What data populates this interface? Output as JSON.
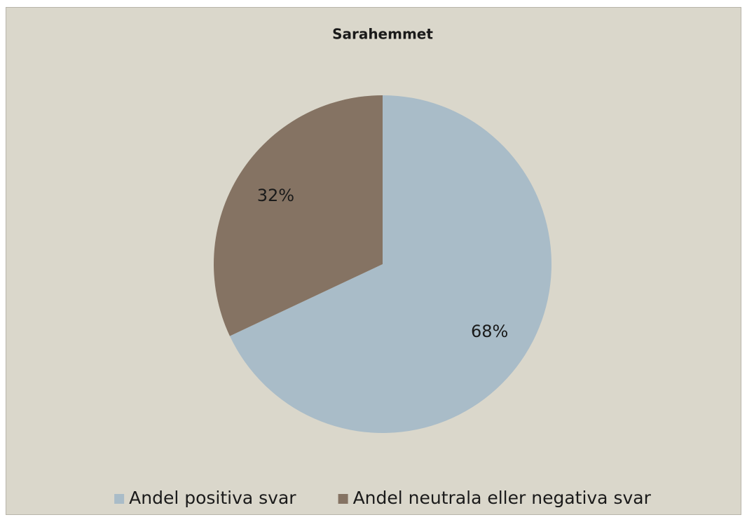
{
  "chart_data": {
    "type": "pie",
    "title": "Sarahemmet",
    "categories": [
      "Andel positiva svar",
      "Andel neutrala eller negativa svar"
    ],
    "values": [
      68,
      32
    ],
    "value_labels": [
      "68%",
      "32%"
    ],
    "colors": [
      "#a9bcc8",
      "#857363"
    ],
    "legend": "bottom"
  }
}
